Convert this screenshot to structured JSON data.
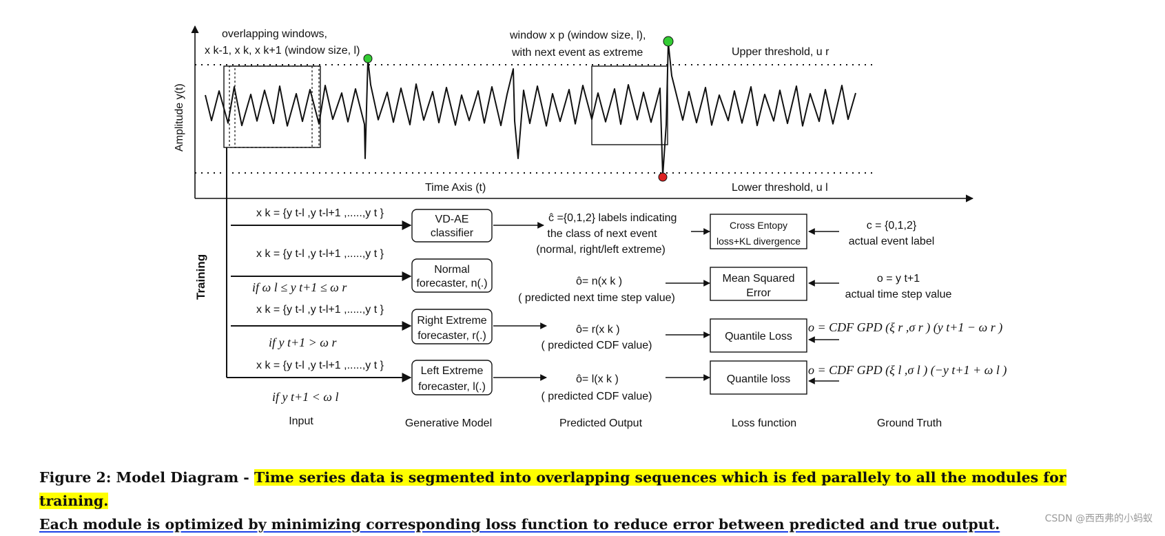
{
  "top_plot": {
    "y_axis_label": "Amplitude y(t)",
    "x_axis_label": "Time Axis  (t)",
    "annot_overlap_line1": "overlapping windows,",
    "annot_overlap_line2": "x k-1, x k, x k+1 (window size, l)",
    "annot_window_line1": "window x p (window size, l),",
    "annot_window_line2": "with next event as extreme",
    "upper_threshold": "Upper threshold, u r",
    "lower_threshold": "Lower threshold, u l"
  },
  "training_label": "Training",
  "rows": [
    {
      "input": "x k = {y t-l ,y t-l+1 ,.....,y t }",
      "condition": "",
      "model_line1": "VD-AE",
      "model_line2": "classifier",
      "output_line1": "ĉ ={0,1,2} labels indicating",
      "output_line2": "the class of next event",
      "output_line3": "(normal, right/left extreme)",
      "loss_line1": "Cross Entopy",
      "loss_line2": "loss+KL divergence",
      "truth_line1": "c = {0,1,2}",
      "truth_line2": "actual event label"
    },
    {
      "input": "x k = {y t-l ,y t-l+1 ,.....,y t }",
      "condition": "if ω l ≤ y t+1 ≤ ω r",
      "model_line1": "Normal",
      "model_line2": "forecaster, n(.)",
      "output_line1": "ô= n(x k )",
      "output_line2": "( predicted next time step value)",
      "loss_line1": "Mean Squared",
      "loss_line2": "Error",
      "truth_line1": "o = y t+1",
      "truth_line2": "actual time step value"
    },
    {
      "input": "x k = {y t-l ,y t-l+1 ,.....,y t }",
      "condition": "if y t+1 > ω r",
      "model_line1": "Right Extreme",
      "model_line2": "forecaster, r(.)",
      "output_line1": "ô= r(x k )",
      "output_line2": "( predicted CDF value)",
      "loss_line1": "Quantile Loss",
      "truth_line1": "o = CDF GPD (ξ r ,σ r ) (y t+1 − ω r )"
    },
    {
      "input": "x k = {y t-l ,y t-l+1 ,.....,y t }",
      "condition": "if y t+1 < ω l",
      "model_line1": "Left Extreme",
      "model_line2": "forecaster, l(.)",
      "output_line1": "ô= l(x k )",
      "output_line2": "( predicted CDF value)",
      "loss_line1": "Quantile loss",
      "truth_line1": "o = CDF GPD (ξ l ,σ l ) (−y t+1 + ω l )"
    }
  ],
  "columns": {
    "input": "Input",
    "model": "Generative Model",
    "output": "Predicted Output",
    "loss": "Loss function",
    "truth": "Ground Truth"
  },
  "caption": {
    "prefix": "Figure 2: Model Diagram - ",
    "highlighted": "Time series data is segmented into overlapping sequences which is fed parallely to all the modules for training.",
    "underlined": "Each module is optimized by minimizing corresponding loss function to reduce error between predicted and true output."
  },
  "watermark": "CSDN @西西弗的小蚂蚁",
  "colors": {
    "extreme_high": "#33cc33",
    "extreme_low": "#dd2222",
    "highlight": "#ffff00",
    "underline": "#1a3fe6"
  }
}
